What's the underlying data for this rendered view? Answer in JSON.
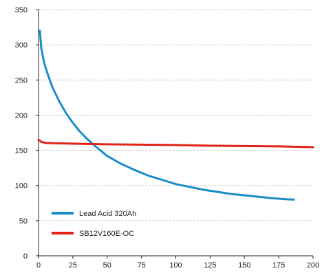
{
  "chart_data": {
    "type": "line",
    "title": "",
    "xlabel": "",
    "ylabel": "",
    "xlim": [
      0,
      200
    ],
    "ylim": [
      0,
      350
    ],
    "x_ticks": [
      0,
      25,
      50,
      75,
      100,
      125,
      150,
      175,
      200
    ],
    "y_ticks": [
      0,
      50,
      100,
      150,
      200,
      250,
      300,
      350
    ],
    "grid": {
      "horizontal": true,
      "style": "dashed"
    },
    "legend_position": "bottom-left",
    "series": [
      {
        "name": "Lead Acid 320Ah",
        "color": "#1a8cc9",
        "points": [
          [
            1,
            320
          ],
          [
            2,
            295
          ],
          [
            4,
            275
          ],
          [
            6,
            262
          ],
          [
            10,
            240
          ],
          [
            15,
            220
          ],
          [
            20,
            203
          ],
          [
            25,
            189
          ],
          [
            30,
            177
          ],
          [
            35,
            167
          ],
          [
            40,
            158
          ],
          [
            45,
            150
          ],
          [
            50,
            142
          ],
          [
            60,
            131
          ],
          [
            70,
            122
          ],
          [
            80,
            114
          ],
          [
            90,
            108
          ],
          [
            100,
            102
          ],
          [
            110,
            98
          ],
          [
            120,
            94
          ],
          [
            130,
            91
          ],
          [
            140,
            88
          ],
          [
            150,
            86
          ],
          [
            160,
            84
          ],
          [
            170,
            82
          ],
          [
            180,
            80.5
          ],
          [
            186,
            80
          ]
        ]
      },
      {
        "name": "SB12V160E-OC",
        "color": "#e2221a",
        "points": [
          [
            0,
            165
          ],
          [
            2,
            162
          ],
          [
            5,
            160.5
          ],
          [
            10,
            160
          ],
          [
            25,
            159.5
          ],
          [
            50,
            158.5
          ],
          [
            75,
            158
          ],
          [
            100,
            157.5
          ],
          [
            125,
            156.5
          ],
          [
            150,
            156
          ],
          [
            175,
            155.5
          ],
          [
            200,
            154.5
          ]
        ]
      }
    ]
  }
}
